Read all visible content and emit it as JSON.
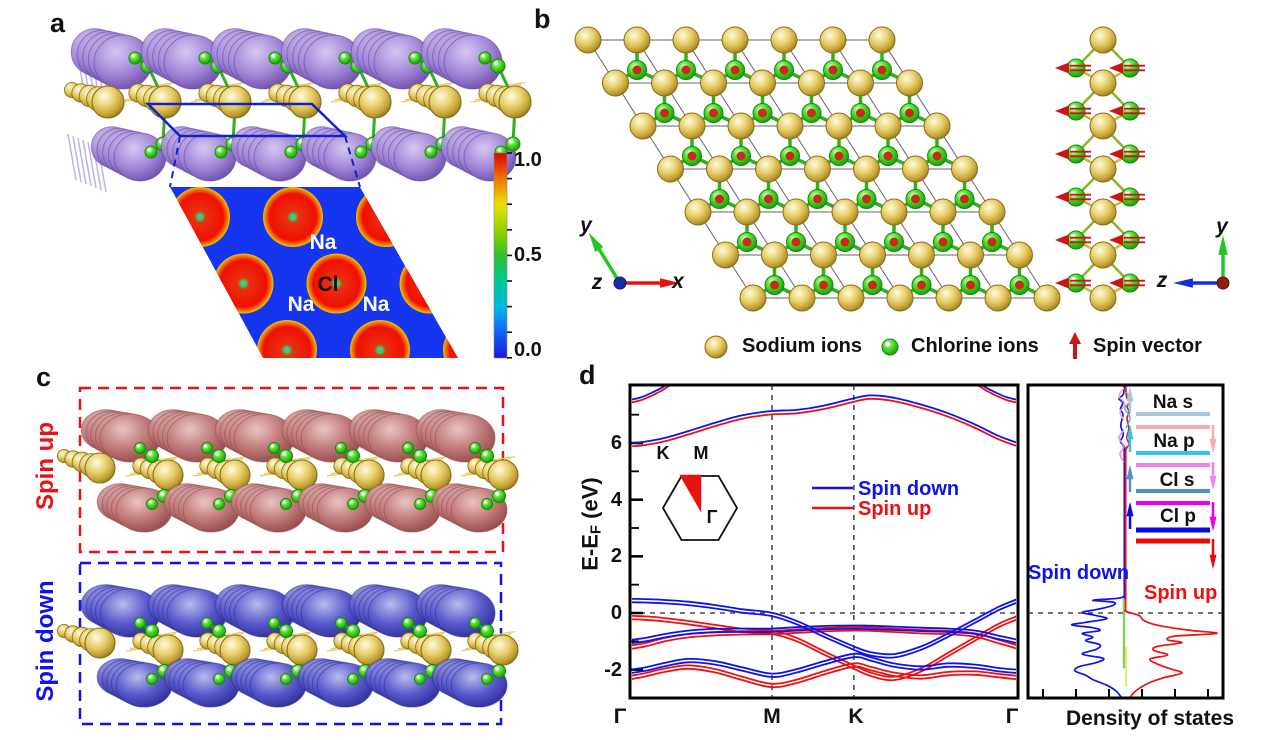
{
  "panels": {
    "a": {
      "label": "a",
      "map_labels": {
        "na1": "Na",
        "cl": "Cl",
        "na2": "Na",
        "na3": "Na"
      },
      "colorbar": {
        "ticks": [
          "1.0",
          "0.5",
          "0.0"
        ]
      }
    },
    "b": {
      "label": "b",
      "axes_left": {
        "x": "x",
        "y": "y",
        "z": "z"
      },
      "axes_right": {
        "y": "y",
        "z": "z"
      },
      "legend": {
        "sodium": "Sodium ions",
        "chlorine": "Chlorine ions",
        "spin": "Spin vector"
      }
    },
    "c": {
      "label": "c",
      "spin_up_label": "Spin up",
      "spin_down_label": "Spin down"
    },
    "d": {
      "label": "d",
      "ylabel_main": "E-E",
      "ylabel_sub": "F",
      "ylabel_unit": " (eV)"
    }
  },
  "colors": {
    "band_spin_down": "#1012e6",
    "band_spin_up": "#ec1012",
    "gold": "#d9bd4d",
    "gold_dark": "#8a6d14",
    "green_atom": "#3ed61e",
    "green_dark": "#128a0a",
    "bond_green": "#2db11e",
    "purple_blob": "#a287d8",
    "purple_dark": "#5f3fa0",
    "rosy_blob": "#c07878",
    "rosy_dark": "#8f4848",
    "blue_blob": "#5858cc",
    "blue_blob_dark": "#2c2c96",
    "spin_red": "#cc1515",
    "map_bg": "#1535ee",
    "box_red": "#e81212",
    "box_blue": "#1212e8",
    "axis_x": "#e81010",
    "axis_y": "#22c820",
    "axis_z": "#1530d8",
    "origin_navy": "#1a2ba8",
    "origin_darkred": "#8c1f10",
    "red_dot": "#c62c1a",
    "dos_axis_green": "#7ec850",
    "dos_axis_yellow": "#e6e04e",
    "hatch_yellow": "#e0ca50"
  },
  "chart_data": [
    {
      "type": "line",
      "title": "Spin-polarized band structure",
      "ylabel": "E-E_F (eV)",
      "ylim": [
        -3.05,
        8.05
      ],
      "yticks_labels": [
        "-2",
        "0",
        "2",
        "4",
        "6"
      ],
      "yticks_values": [
        -2,
        0,
        2,
        4,
        6
      ],
      "k_labels": [
        "Γ",
        "M",
        "K",
        "Γ"
      ],
      "k_positions": [
        0,
        0.366,
        0.577,
        1.0
      ],
      "fermi_level": 0,
      "legend": [
        {
          "name": "Spin down",
          "color": "#1012e6"
        },
        {
          "name": "Spin up",
          "color": "#ec1012"
        }
      ],
      "inset": {
        "labels": [
          "K",
          "M",
          "Γ"
        ]
      },
      "pair_split_eV": 0.12,
      "k_samples": [
        0,
        0.04,
        0.09,
        0.15,
        0.22,
        0.29,
        0.366,
        0.43,
        0.5,
        0.577,
        0.62,
        0.68,
        0.75,
        0.82,
        0.89,
        0.95,
        1
      ],
      "series": [
        {
          "name": "valence 1 spin-down",
          "spin": "down",
          "doubled": true,
          "values": [
            0.5,
            0.49,
            0.46,
            0.4,
            0.28,
            0.13,
            0.01,
            -0.28,
            -0.72,
            -1.18,
            -1.38,
            -1.45,
            -1.18,
            -0.72,
            -0.22,
            0.22,
            0.5
          ]
        },
        {
          "name": "valence 2 spin-down",
          "spin": "down",
          "doubled": true,
          "values": [
            -0.95,
            -0.88,
            -0.74,
            -0.62,
            -0.56,
            -0.55,
            -0.55,
            -0.5,
            -0.46,
            -0.44,
            -0.45,
            -0.48,
            -0.52,
            -0.55,
            -0.62,
            -0.8,
            -0.95
          ]
        },
        {
          "name": "valence 3 spin-down",
          "spin": "down",
          "doubled": true,
          "values": [
            -2.0,
            -1.92,
            -1.76,
            -1.62,
            -1.7,
            -1.92,
            -2.14,
            -1.98,
            -1.7,
            -1.44,
            -1.56,
            -1.78,
            -1.88,
            -1.78,
            -1.82,
            -1.94,
            -2.0
          ]
        },
        {
          "name": "valence 1 spin-up",
          "spin": "up",
          "doubled": true,
          "values": [
            -0.1,
            -0.12,
            -0.18,
            -0.28,
            -0.42,
            -0.55,
            -0.62,
            -0.88,
            -1.35,
            -1.85,
            -2.1,
            -2.25,
            -1.95,
            -1.4,
            -0.85,
            -0.38,
            -0.1
          ]
        },
        {
          "name": "valence 2 spin-up",
          "spin": "up",
          "doubled": true,
          "values": [
            -1.15,
            -1.06,
            -0.88,
            -0.74,
            -0.67,
            -0.64,
            -0.63,
            -0.58,
            -0.53,
            -0.5,
            -0.51,
            -0.55,
            -0.6,
            -0.63,
            -0.72,
            -0.95,
            -1.15
          ]
        },
        {
          "name": "valence 3 spin-up",
          "spin": "up",
          "doubled": true,
          "values": [
            -2.22,
            -2.12,
            -1.96,
            -1.85,
            -1.98,
            -2.25,
            -2.5,
            -2.35,
            -2.05,
            -1.78,
            -1.9,
            -2.1,
            -2.2,
            -2.08,
            -2.06,
            -2.15,
            -2.22
          ]
        },
        {
          "name": "conduction spin-down",
          "spin": "down",
          "doubled": false,
          "values": [
            6.0,
            6.05,
            6.18,
            6.42,
            6.72,
            6.98,
            7.13,
            7.17,
            7.32,
            7.58,
            7.68,
            7.6,
            7.36,
            7.05,
            6.65,
            6.25,
            6.0
          ]
        },
        {
          "name": "conduction spin-up",
          "spin": "up",
          "doubled": false,
          "values": [
            5.88,
            5.93,
            6.06,
            6.3,
            6.6,
            6.86,
            7.01,
            7.05,
            7.2,
            7.46,
            7.56,
            7.48,
            7.24,
            6.93,
            6.53,
            6.13,
            5.88
          ]
        },
        {
          "name": "upper corner left spin-down",
          "spin": "down",
          "doubled": false,
          "k": [
            0,
            0.03,
            0.06,
            0.09,
            0.13
          ],
          "values": [
            7.52,
            7.62,
            7.8,
            8.02,
            8.4
          ]
        },
        {
          "name": "upper corner left spin-up",
          "spin": "up",
          "doubled": false,
          "k": [
            0,
            0.03,
            0.06,
            0.09,
            0.13
          ],
          "values": [
            7.42,
            7.52,
            7.7,
            7.92,
            8.3
          ]
        },
        {
          "name": "upper corner right spin-down",
          "spin": "down",
          "doubled": false,
          "k": [
            0.87,
            0.91,
            0.94,
            0.97,
            1
          ],
          "values": [
            8.4,
            8.02,
            7.8,
            7.62,
            7.52
          ]
        },
        {
          "name": "upper corner right spin-up",
          "spin": "up",
          "doubled": false,
          "k": [
            0.87,
            0.91,
            0.94,
            0.97,
            1
          ],
          "values": [
            8.3,
            7.92,
            7.7,
            7.52,
            7.42
          ]
        }
      ]
    },
    {
      "type": "line",
      "title": "Density of states",
      "xlabel": "Density of states",
      "spin_down_label": "Spin down",
      "spin_up_label": "Spin up",
      "orbitals": [
        {
          "label": "Na s",
          "up_color": "#a9c6da",
          "down_color": "#f6aab6"
        },
        {
          "label": "Na p",
          "up_color": "#38c2ea",
          "down_color": "#ee82ee"
        },
        {
          "label": "Cl s",
          "up_color": "#4f91c6",
          "down_color": "#ea00ea"
        },
        {
          "label": "Cl p",
          "up_color": "#0a0ae0",
          "down_color": "#ea0a0a"
        }
      ],
      "curves": {
        "spin_down": [
          [
            8.0,
            0
          ],
          [
            7.72,
            0.15
          ],
          [
            7.56,
            0.75
          ],
          [
            7.42,
            0.2
          ],
          [
            7.2,
            0.55
          ],
          [
            7.0,
            0.2
          ],
          [
            6.62,
            0.5
          ],
          [
            6.3,
            0.15
          ],
          [
            6.05,
            0.55
          ],
          [
            5.88,
            0.1
          ],
          [
            5.4,
            0
          ],
          [
            1.0,
            0
          ],
          [
            0.62,
            0
          ],
          [
            0.52,
            1.0
          ],
          [
            0.45,
            4.5
          ],
          [
            0.38,
            1.5
          ],
          [
            0.25,
            1.8
          ],
          [
            0.12,
            4.0
          ],
          [
            0.02,
            6.0
          ],
          [
            -0.08,
            4.2
          ],
          [
            -0.2,
            2.5
          ],
          [
            -0.33,
            5.5
          ],
          [
            -0.42,
            7.5
          ],
          [
            -0.52,
            4.5
          ],
          [
            -0.62,
            3.5
          ],
          [
            -0.72,
            6.0
          ],
          [
            -0.85,
            4.5
          ],
          [
            -0.98,
            5.5
          ],
          [
            -1.12,
            3.5
          ],
          [
            -1.28,
            4.0
          ],
          [
            -1.45,
            6.0
          ],
          [
            -1.6,
            3.0
          ],
          [
            -1.75,
            4.0
          ],
          [
            -1.9,
            6.5
          ],
          [
            -2.05,
            7.0
          ],
          [
            -2.2,
            5.5
          ],
          [
            -2.35,
            4.5
          ],
          [
            -2.55,
            2.5
          ],
          [
            -2.75,
            1.2
          ],
          [
            -2.95,
            0.5
          ],
          [
            -3.05,
            0.3
          ]
        ],
        "spin_up": [
          [
            8.0,
            0
          ],
          [
            7.6,
            0.15
          ],
          [
            7.45,
            0.7
          ],
          [
            7.3,
            0.2
          ],
          [
            7.08,
            0.5
          ],
          [
            6.88,
            0.2
          ],
          [
            6.5,
            0.45
          ],
          [
            6.2,
            0.15
          ],
          [
            5.95,
            0.5
          ],
          [
            5.8,
            0.1
          ],
          [
            5.3,
            0
          ],
          [
            0.6,
            0
          ],
          [
            0.1,
            0
          ],
          [
            0.0,
            0.8
          ],
          [
            -0.1,
            2.0
          ],
          [
            -0.25,
            2.5
          ],
          [
            -0.4,
            4.0
          ],
          [
            -0.52,
            6.5
          ],
          [
            -0.62,
            9.5
          ],
          [
            -0.72,
            13.0
          ],
          [
            -0.82,
            7.0
          ],
          [
            -0.95,
            6.0
          ],
          [
            -1.05,
            8.0
          ],
          [
            -1.18,
            4.5
          ],
          [
            -1.32,
            4.0
          ],
          [
            -1.48,
            6.0
          ],
          [
            -1.62,
            3.5
          ],
          [
            -1.8,
            4.5
          ],
          [
            -1.98,
            6.5
          ],
          [
            -2.12,
            8.0
          ],
          [
            -2.28,
            5.5
          ],
          [
            -2.45,
            3.5
          ],
          [
            -2.65,
            2.0
          ],
          [
            -2.85,
            1.0
          ],
          [
            -3.05,
            0.5
          ]
        ]
      }
    }
  ]
}
